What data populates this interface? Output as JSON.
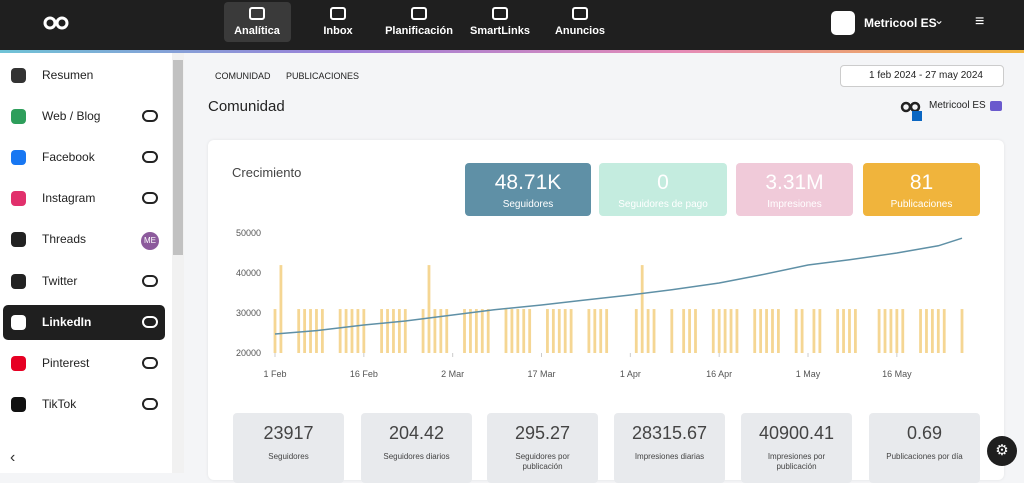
{
  "nav": {
    "items": [
      "Analítica",
      "Inbox",
      "Planificación",
      "SmartLinks",
      "Anuncios"
    ],
    "account": "Metricool ES"
  },
  "sidebar": {
    "items": [
      "Resumen",
      "Web / Blog",
      "Facebook",
      "Instagram",
      "Threads",
      "Twitter",
      "LinkedIn",
      "Pinterest",
      "TikTok"
    ],
    "threads_badge": "ME"
  },
  "header": {
    "tabs": [
      "COMUNIDAD",
      "PUBLICACIONES"
    ],
    "date_range": "1 feb 2024 - 27 may 2024",
    "title": "Comunidad",
    "brand": "Metricool ES"
  },
  "kpis": [
    {
      "value": "48.71K",
      "label": "Seguidores",
      "color": "#5f90a6",
      "text": "#ffffff"
    },
    {
      "value": "0",
      "label": "Seguidores de pago",
      "color": "#c4ecdf",
      "text": "#ffffff"
    },
    {
      "value": "3.31M",
      "label": "Impresiones",
      "color": "#f0cad9",
      "text": "#ffffff"
    },
    {
      "value": "81",
      "label": "Publicaciones",
      "color": "#f0b43c",
      "text": "#ffffff"
    }
  ],
  "chart_data": {
    "type": "line",
    "title": "Crecimiento",
    "xlim": [
      0,
      116
    ],
    "xticks": [
      {
        "value": 0,
        "label": "1 Feb"
      },
      {
        "value": 15,
        "label": "16 Feb"
      },
      {
        "value": 30,
        "label": "2 Mar"
      },
      {
        "value": 45,
        "label": "17 Mar"
      },
      {
        "value": 60,
        "label": "1 Apr"
      },
      {
        "value": 75,
        "label": "16 Apr"
      },
      {
        "value": 90,
        "label": "1 May"
      },
      {
        "value": 105,
        "label": "16 May"
      }
    ],
    "ylim": [
      20000,
      50000
    ],
    "yticks": [
      20000,
      30000,
      40000,
      50000
    ],
    "y2lim": [
      0,
      2.73
    ],
    "series": [
      {
        "type": "line",
        "color": "#5f90a6",
        "x": [
          0,
          7,
          15,
          22,
          30,
          37,
          45,
          52,
          60,
          67,
          75,
          82,
          90,
          97,
          105,
          112,
          116
        ],
        "values": [
          24750,
          25600,
          27000,
          28000,
          29500,
          30800,
          32000,
          33200,
          34500,
          35800,
          37500,
          39500,
          42000,
          43300,
          45000,
          46800,
          48700
        ]
      },
      {
        "type": "bar",
        "axis": "y2",
        "color": "#f5d693",
        "x": [
          0,
          1,
          4,
          5,
          6,
          7,
          8,
          11,
          12,
          13,
          14,
          15,
          18,
          19,
          20,
          21,
          22,
          25,
          26,
          27,
          28,
          29,
          32,
          33,
          34,
          35,
          36,
          39,
          40,
          41,
          42,
          43,
          46,
          47,
          48,
          49,
          50,
          53,
          54,
          55,
          56,
          61,
          62,
          63,
          64,
          67,
          69,
          70,
          71,
          74,
          75,
          76,
          77,
          78,
          81,
          82,
          83,
          84,
          85,
          88,
          89,
          91,
          92,
          95,
          96,
          97,
          98,
          102,
          103,
          104,
          105,
          106,
          109,
          110,
          111,
          112,
          113,
          116
        ],
        "values": [
          1,
          2,
          1,
          1,
          1,
          1,
          1,
          1,
          1,
          1,
          1,
          1,
          1,
          1,
          1,
          1,
          1,
          1,
          2,
          1,
          1,
          1,
          1,
          1,
          1,
          1,
          1,
          1,
          1,
          1,
          1,
          1,
          1,
          1,
          1,
          1,
          1,
          1,
          1,
          1,
          1,
          1,
          2,
          1,
          1,
          1,
          1,
          1,
          1,
          1,
          1,
          1,
          1,
          1,
          1,
          1,
          1,
          1,
          1,
          1,
          1,
          1,
          1,
          1,
          1,
          1,
          1,
          1,
          1,
          1,
          1,
          1,
          1,
          1,
          1,
          1,
          1,
          1
        ]
      }
    ]
  },
  "stats": [
    {
      "value": 23917,
      "label": "Seguidores"
    },
    {
      "value": 204.42,
      "label": "Seguidores diarios"
    },
    {
      "value": 295.27,
      "label": "Seguidores por publicación"
    },
    {
      "value": 28315.67,
      "label": "Impresiones diarias"
    },
    {
      "value": 40900.41,
      "label": "Impresiones por publicación"
    },
    {
      "value": 0.69,
      "label": "Publicaciones por día"
    }
  ]
}
